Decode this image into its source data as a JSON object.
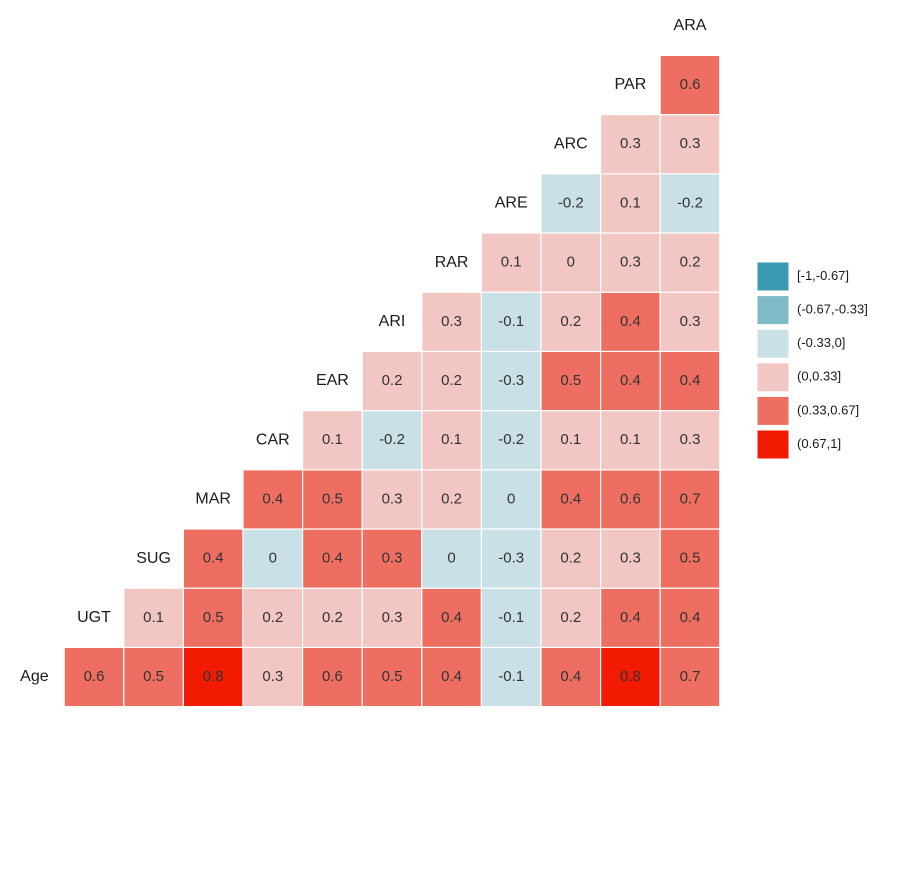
{
  "chart_data": {
    "type": "heatmap",
    "variables": [
      "Age",
      "UGT",
      "SUG",
      "MAR",
      "CAR",
      "EAR",
      "ARI",
      "RAR",
      "ARE",
      "ARC",
      "PAR",
      "ARA"
    ],
    "values": [
      [
        0.6,
        0.5,
        0.8,
        0.3,
        0.6,
        0.5,
        0.4,
        -0.1,
        0.4,
        0.8,
        0.7
      ],
      [
        0.1,
        0.5,
        0.2,
        0.2,
        0.3,
        0.4,
        -0.1,
        0.2,
        0.4,
        0.4
      ],
      [
        0.4,
        0,
        0.4,
        0.3,
        0,
        -0.3,
        0.2,
        0.3,
        0.5
      ],
      [
        0.4,
        0.5,
        0.3,
        0.2,
        0,
        0.4,
        0.6,
        0.7
      ],
      [
        0.1,
        -0.2,
        0.1,
        -0.2,
        0.1,
        0.1,
        0.3
      ],
      [
        0.2,
        0.2,
        -0.3,
        0.5,
        0.4,
        0.4
      ],
      [
        0.3,
        -0.1,
        0.2,
        0.4,
        0.3
      ],
      [
        0.1,
        0,
        0.3,
        0.2
      ],
      [
        -0.2,
        0.1,
        -0.2
      ],
      [
        0.3,
        0.3
      ],
      [
        0.6
      ],
      []
    ],
    "colors": [
      [
        "#EE6F61",
        "#EE6F61",
        "#F21A00",
        "#F2C6C2",
        "#EE6F61",
        "#EE6F61",
        "#EE6F61",
        "#C9E0E6",
        "#EE6F61",
        "#F21A00",
        "#EE6F61"
      ],
      [
        "#F2C6C2",
        "#EE6F61",
        "#F2C6C2",
        "#F2C6C2",
        "#F2C6C2",
        "#EE6F61",
        "#C9E0E6",
        "#F2C6C2",
        "#EE6F61",
        "#EE6F61"
      ],
      [
        "#EE6F61",
        "#C9E0E6",
        "#EE6F61",
        "#EE6F61",
        "#C9E0E6",
        "#C9E0E6",
        "#F2C6C2",
        "#F2C6C2",
        "#EE6F61"
      ],
      [
        "#EE6F61",
        "#EE6F61",
        "#F2C6C2",
        "#F2C6C2",
        "#C9E0E6",
        "#EE6F61",
        "#EE6F61",
        "#EE6F61"
      ],
      [
        "#F2C6C2",
        "#C9E0E6",
        "#F2C6C2",
        "#C9E0E6",
        "#F2C6C2",
        "#F2C6C2",
        "#F2C6C2"
      ],
      [
        "#F2C6C2",
        "#F2C6C2",
        "#C9E0E6",
        "#EE6F61",
        "#EE6F61",
        "#EE6F61"
      ],
      [
        "#F2C6C2",
        "#C9E0E6",
        "#F2C6C2",
        "#EE6F61",
        "#F2C6C2"
      ],
      [
        "#F2C6C2",
        "#F2C6C2",
        "#F2C6C2",
        "#F2C6C2"
      ],
      [
        "#C9E0E6",
        "#F2C6C2",
        "#C9E0E6"
      ],
      [
        "#F2C6C2",
        "#F2C6C2"
      ],
      [
        "#EE6F61"
      ],
      []
    ],
    "legend": [
      {
        "label": "[-1,-0.67]",
        "color": "#3B9AB2"
      },
      {
        "label": "(-0.67,-0.33]",
        "color": "#7FBAC6"
      },
      {
        "label": "(-0.33,0]",
        "color": "#C9E0E6"
      },
      {
        "label": "(0,0.33]",
        "color": "#F2C6C2"
      },
      {
        "label": "(0.33,0.67]",
        "color": "#EE6F61"
      },
      {
        "label": "(0.67,1]",
        "color": "#F21A00"
      }
    ]
  }
}
